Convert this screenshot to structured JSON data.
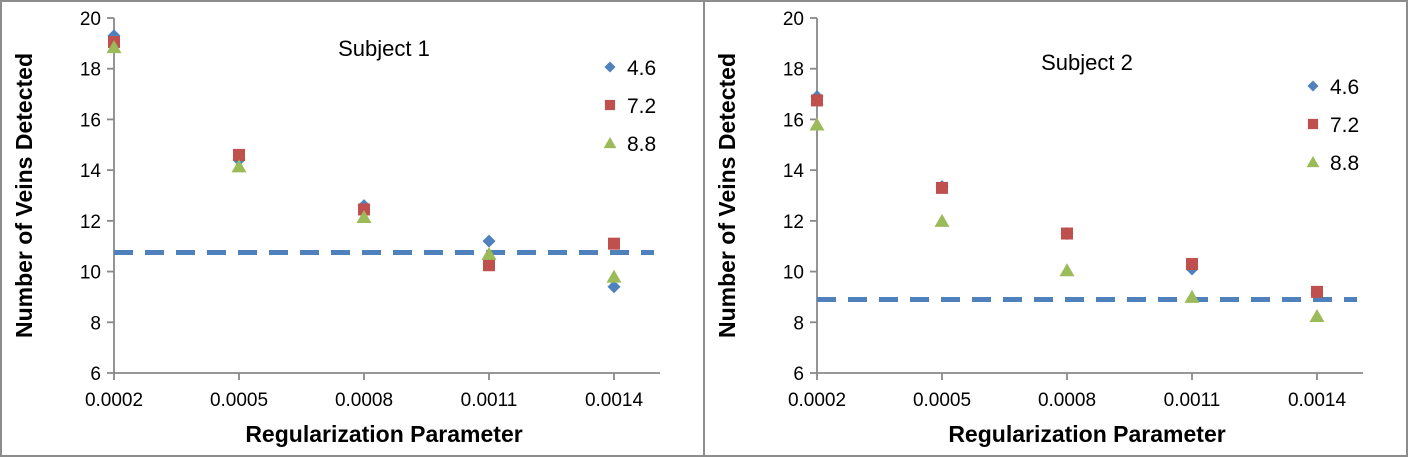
{
  "figure": {
    "background": "#ffffff",
    "border_color": "#8c8c8c",
    "axis_color": "#898989",
    "text_color": "#000000"
  },
  "chart_data": [
    {
      "type": "scatter",
      "title": "Subject 1",
      "xlabel": "Regularization Parameter",
      "ylabel": "Number of Veins Detected",
      "x": [
        0.0002,
        0.0005,
        0.0008,
        0.0011,
        0.0014
      ],
      "x_tick_labels": [
        "0.0002",
        "0.0005",
        "0.0008",
        "0.0011",
        "0.0014"
      ],
      "ylim": [
        6,
        20
      ],
      "ytick_interval": 2,
      "ytick_labels": [
        "6",
        "8",
        "10",
        "12",
        "14",
        "16",
        "18",
        "20"
      ],
      "grid": false,
      "legend_position": "inside-top-right",
      "series": [
        {
          "name": "4.6",
          "marker": "diamond",
          "color": "#4F81BD",
          "values": [
            19.3,
            14.4,
            12.6,
            11.2,
            9.4
          ]
        },
        {
          "name": "7.2",
          "marker": "square",
          "color": "#C0504D",
          "values": [
            19.05,
            14.6,
            12.45,
            10.25,
            11.1
          ]
        },
        {
          "name": "8.8",
          "marker": "triangle",
          "color": "#9BBB59",
          "values": [
            18.85,
            14.15,
            12.15,
            10.7,
            9.8
          ]
        }
      ],
      "reference_line": {
        "value": 10.75,
        "style": "dashed",
        "color": "#4F81BD"
      }
    },
    {
      "type": "scatter",
      "title": "Subject 2",
      "xlabel": "Regularization Parameter",
      "ylabel": "Number of Veins Detected",
      "x": [
        0.0002,
        0.0005,
        0.0008,
        0.0011,
        0.0014
      ],
      "x_tick_labels": [
        "0.0002",
        "0.0005",
        "0.0008",
        "0.0011",
        "0.0014"
      ],
      "ylim": [
        6,
        20
      ],
      "ytick_interval": 2,
      "ytick_labels": [
        "6",
        "8",
        "10",
        "12",
        "14",
        "16",
        "18",
        "20"
      ],
      "grid": false,
      "legend_position": "inside-top-right",
      "series": [
        {
          "name": "4.6",
          "marker": "diamond",
          "color": "#4F81BD",
          "values": [
            16.9,
            13.35,
            11.5,
            10.1,
            9.15
          ]
        },
        {
          "name": "7.2",
          "marker": "square",
          "color": "#C0504D",
          "values": [
            16.75,
            13.3,
            11.5,
            10.3,
            9.2
          ]
        },
        {
          "name": "8.8",
          "marker": "triangle",
          "color": "#9BBB59",
          "values": [
            15.8,
            12.0,
            10.05,
            9.0,
            8.25
          ]
        }
      ],
      "reference_line": {
        "value": 8.9,
        "style": "dashed",
        "color": "#4F81BD"
      }
    }
  ]
}
